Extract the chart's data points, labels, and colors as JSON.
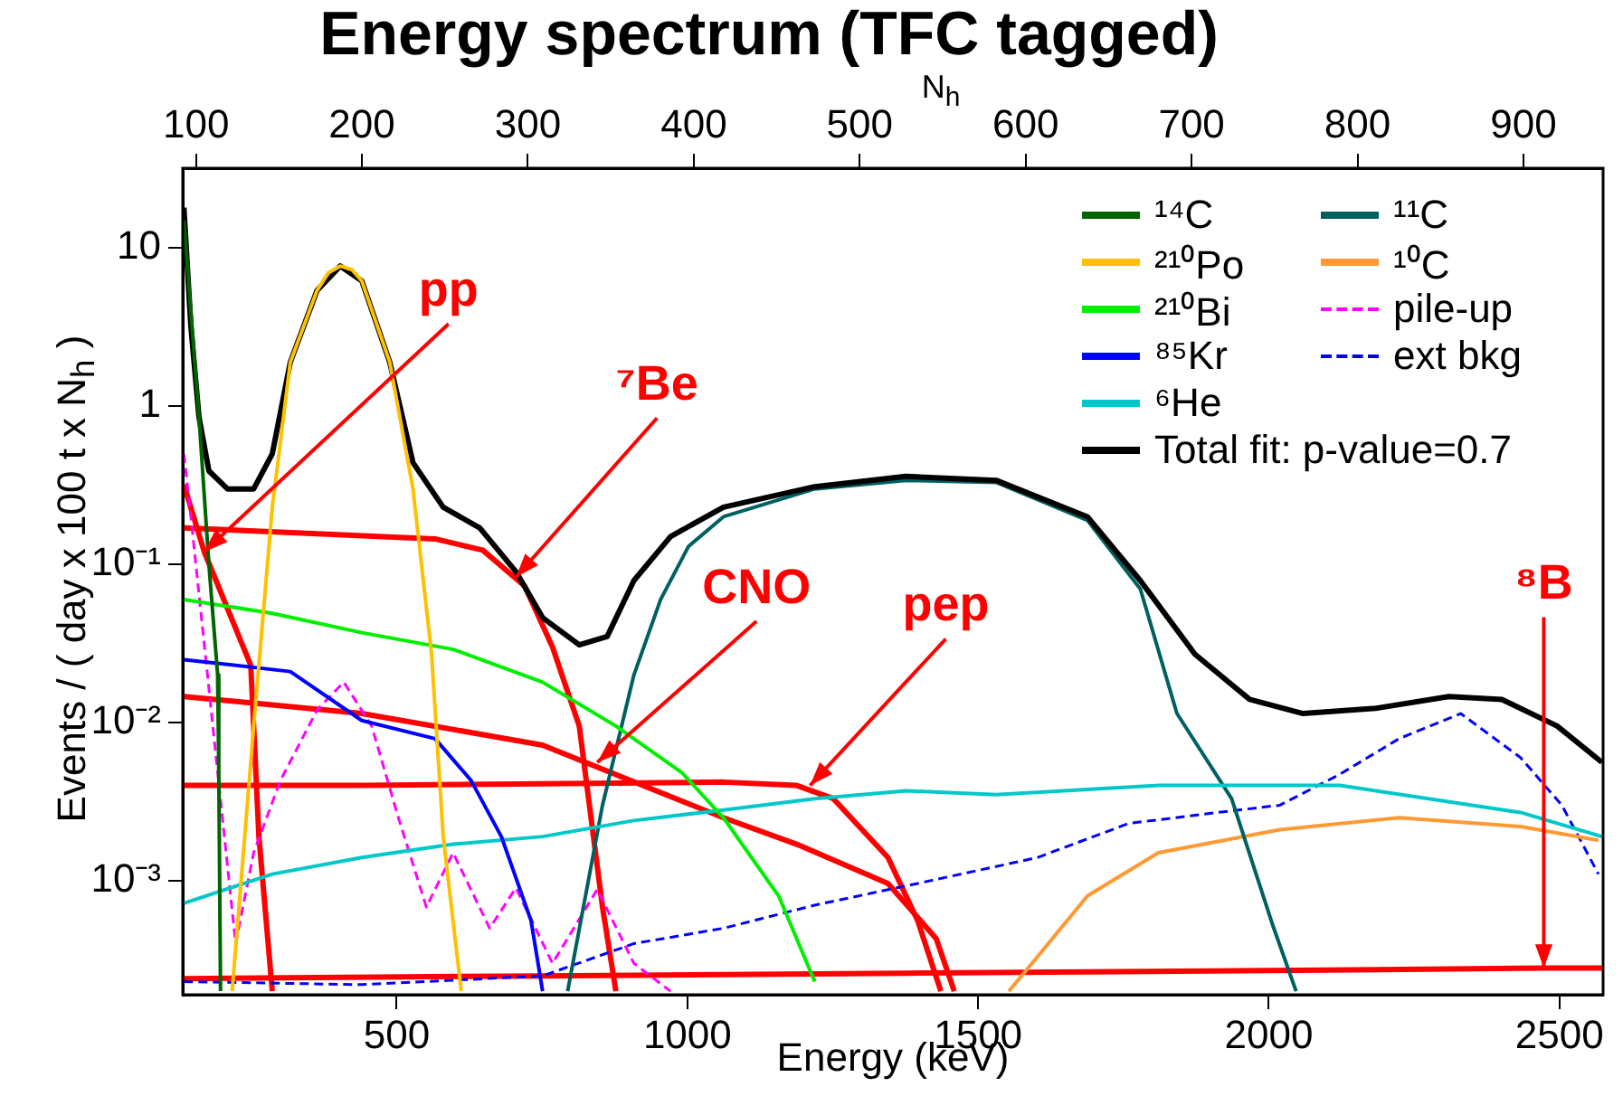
{
  "chart_data": {
    "type": "line",
    "title": "Energy spectrum (TFC tagged)",
    "xlabel": "Energy (keV)",
    "x2label": "N$_{h}$",
    "ylabel": "Events / ( day x 100 t x N$_{h}$ )",
    "xlim": [
      132,
      2575
    ],
    "xticks": [
      500,
      1000,
      1500,
      2000,
      2500
    ],
    "x2lim": [
      92,
      948
    ],
    "x2ticks": [
      100,
      200,
      300,
      400,
      500,
      600,
      700,
      800,
      900
    ],
    "ylim": [
      0.00019,
      32
    ],
    "yticks": [
      {
        "value": 0.001,
        "label": "10⁻³"
      },
      {
        "value": 0.01,
        "label": "10⁻²"
      },
      {
        "value": 0.1,
        "label": "10⁻¹"
      },
      1,
      10
    ],
    "log": true,
    "grid": false,
    "legend": "top right",
    "marker": "none",
    "series": [
      {
        "name": "¹⁴C",
        "color": "#006400",
        "x": [
          134,
          160,
          177,
          192,
          194,
          197
        ],
        "values": [
          15,
          0.85,
          0.1,
          0.02,
          0.005,
          0.0002
        ]
      },
      {
        "name": "²¹⁰Po",
        "color": "#ffc000",
        "x": [
          217,
          254,
          286,
          317,
          363,
          383,
          403,
          423,
          440,
          488,
          528,
          560,
          580,
          611
        ],
        "values": [
          0.0002,
          0.0095,
          0.23,
          1.9,
          5.4,
          7.0,
          7.7,
          7.3,
          6.2,
          1.9,
          0.3,
          0.027,
          0.0019,
          0.0002
        ]
      },
      {
        "name": "²¹⁰Bi",
        "color": "#00ee00",
        "x": [
          134,
          286,
          440,
          597,
          751,
          877,
          991,
          1062,
          1157,
          1219
        ],
        "values": [
          0.06,
          0.049,
          0.037,
          0.029,
          0.018,
          0.0095,
          0.0048,
          0.0025,
          0.0008,
          0.00023
        ]
      },
      {
        "name": "⁸⁵Kr",
        "color": "#0000ff",
        "x": [
          134,
          317,
          440,
          566,
          628,
          680,
          731,
          751
        ],
        "values": [
          0.025,
          0.021,
          0.0103,
          0.0079,
          0.0043,
          0.0019,
          0.00056,
          0.0002
        ]
      },
      {
        "name": "⁶He",
        "color": "#00c8c8",
        "x": [
          134,
          286,
          440,
          597,
          751,
          908,
          1062,
          1219,
          1376,
          1531,
          1810,
          2122,
          2433,
          2573
        ],
        "values": [
          0.00072,
          0.0011,
          0.0014,
          0.0017,
          0.0019,
          0.0024,
          0.0028,
          0.0033,
          0.0037,
          0.0035,
          0.004,
          0.004,
          0.0027,
          0.0019
        ]
      },
      {
        "name": "Total fit: p-value=0.7",
        "color": "#000000",
        "x": [
          134,
          146,
          160,
          177,
          209,
          254,
          286,
          317,
          363,
          403,
          440,
          488,
          528,
          580,
          643,
          705,
          751,
          814,
          862,
          908,
          971,
          1062,
          1219,
          1376,
          1531,
          1688,
          1779,
          1873,
          1967,
          2059,
          2184,
          2310,
          2401,
          2496,
          2573
        ],
        "values": [
          18,
          3.2,
          0.85,
          0.39,
          0.3,
          0.3,
          0.5,
          1.9,
          5.4,
          7.7,
          6.2,
          1.9,
          0.44,
          0.23,
          0.17,
          0.09,
          0.046,
          0.031,
          0.035,
          0.079,
          0.15,
          0.23,
          0.31,
          0.36,
          0.34,
          0.2,
          0.079,
          0.027,
          0.014,
          0.0114,
          0.0123,
          0.0146,
          0.014,
          0.0095,
          0.0056
        ]
      },
      {
        "name": "¹¹C",
        "color": "#006060",
        "x": [
          794,
          854,
          908,
          954,
          1002,
          1062,
          1219,
          1376,
          1531,
          1688,
          1779,
          1842,
          1936,
          2007,
          2047
        ],
        "values": [
          0.0002,
          0.003,
          0.02,
          0.06,
          0.13,
          0.2,
          0.3,
          0.34,
          0.33,
          0.19,
          0.07,
          0.0114,
          0.0033,
          0.00052,
          0.0002
        ]
      },
      {
        "name": "¹⁰C",
        "color": "#ff9933",
        "x": [
          1553,
          1602,
          1688,
          1810,
          2019,
          2224,
          2433,
          2567
        ],
        "values": [
          0.0002,
          0.00033,
          0.0008,
          0.0015,
          0.0021,
          0.0025,
          0.0022,
          0.0018
        ]
      },
      {
        "name": "pile-up",
        "color": "#ff00ff",
        "line_style": "dashed",
        "x": [
          134,
          146,
          223,
          254,
          300,
          363,
          409,
          457,
          503,
          551,
          597,
          660,
          705,
          768,
          845,
          908,
          971
        ],
        "values": [
          0.5,
          0.2,
          0.0004,
          0.0015,
          0.0043,
          0.012,
          0.018,
          0.0095,
          0.0025,
          0.00068,
          0.0015,
          0.0005,
          0.0009,
          0.0003,
          0.00088,
          0.0003,
          0.0002
        ]
      },
      {
        "name": "ext bkg",
        "color": "#0000ff",
        "line_style": "dashed",
        "x": [
          134,
          440,
          751,
          908,
          1062,
          1219,
          1396,
          1602,
          1759,
          1913,
          2019,
          2122,
          2224,
          2330,
          2433,
          2504,
          2567
        ],
        "values": [
          0.00023,
          0.00022,
          0.00025,
          0.0004,
          0.0005,
          0.0007,
          0.00096,
          0.0014,
          0.0023,
          0.0027,
          0.003,
          0.0047,
          0.0079,
          0.0114,
          0.006,
          0.003,
          0.0011
        ]
      },
      {
        "color": "#ff0000",
        "x": [
          134,
          169,
          249,
          263,
          286
        ],
        "values": [
          0.32,
          0.12,
          0.023,
          0.0019,
          0.0002
        ]
      },
      {
        "color": "#ff0000",
        "x": [
          134,
          566,
          648,
          720,
          768,
          814,
          854,
          877
        ],
        "values": [
          0.17,
          0.145,
          0.123,
          0.073,
          0.03,
          0.0095,
          0.00068,
          0.0002
        ]
      },
      {
        "color": "#ff0000",
        "x": [
          134,
          440,
          751,
          1062,
          1188,
          1345,
          1428,
          1459
        ],
        "values": [
          0.0146,
          0.0114,
          0.0072,
          0.0025,
          0.0017,
          0.00096,
          0.00043,
          0.0002
        ]
      },
      {
        "color": "#ff0000",
        "x": [
          134,
          440,
          751,
          1062,
          1188,
          1251,
          1345,
          1396,
          1436
        ],
        "values": [
          0.004,
          0.004,
          0.0041,
          0.0042,
          0.004,
          0.0033,
          0.0014,
          0.00056,
          0.0002
        ]
      },
      {
        "color": "#ff0000",
        "x": [
          134,
          751,
          1376,
          1999,
          2473,
          2573
        ],
        "values": [
          0.00024,
          0.00025,
          0.00026,
          0.00027,
          0.00028,
          0.00028
        ]
      }
    ],
    "annotations": [
      {
        "text": "pp",
        "x": 169,
        "y": 0.12
      },
      {
        "text": "⁷Be",
        "x": 705,
        "y": 0.083
      },
      {
        "text": "CNO",
        "x": 845,
        "y": 0.0056
      },
      {
        "text": "pep",
        "x": 1211,
        "y": 0.004
      },
      {
        "text": "⁸B",
        "x": 2473,
        "y": 0.00028
      }
    ]
  }
}
